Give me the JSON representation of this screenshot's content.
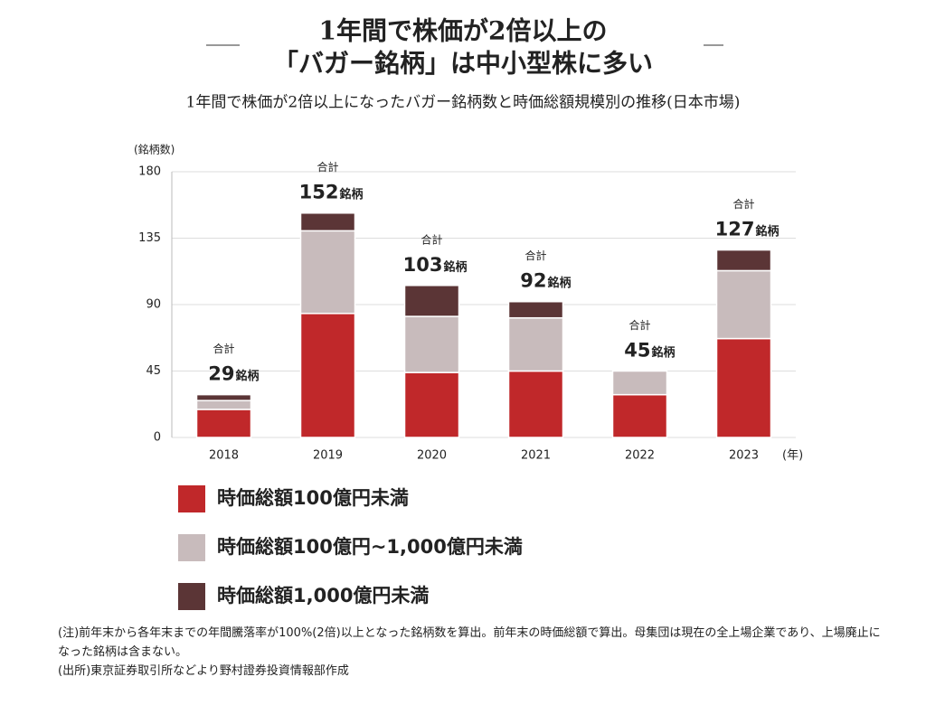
{
  "chart_data": {
    "type": "stacked_bar",
    "title": [
      "1年間で株価が2倍以上の",
      "「バガー銘柄」は中小型株に多い"
    ],
    "subtitle": "1年間で株価が2倍以上になったバガー銘柄数と時価総額規模別の推移(日本市場)",
    "y_label": "(銘柄数)",
    "x_label": "(年)",
    "categories": [
      "2018",
      "2019",
      "2020",
      "2021",
      "2022",
      "2023"
    ],
    "series": [
      {
        "name": "時価総額100億円未満",
        "color": "#c0282a",
        "values": [
          19,
          84,
          44,
          45,
          29,
          67
        ]
      },
      {
        "name": "時価総額100億円~1,000億円未満",
        "color": "#c8bbbc",
        "values": [
          6,
          56,
          38,
          36,
          16,
          46
        ]
      },
      {
        "name": "時価総額1,000億円未満",
        "color": "#5b3536",
        "values": [
          4,
          12,
          21,
          11,
          0,
          14
        ]
      }
    ],
    "total_caption": "合計",
    "totals": [
      29,
      152,
      103,
      92,
      45,
      127
    ],
    "total_unit": "銘柄",
    "ylim": [
      0,
      180
    ],
    "yticks": [
      0,
      45,
      90,
      135,
      180
    ],
    "grid": true,
    "notes": [
      "(注)前年末から各年末までの年間騰落率が100%(2倍)以上となった銘柄数を算出。前年末の時価総額で算出。母集団は現在の全上場企業であり、上場廃止になった銘柄は含まない。",
      "(出所)東京証券取引所などより野村證券投資情報部作成"
    ]
  }
}
